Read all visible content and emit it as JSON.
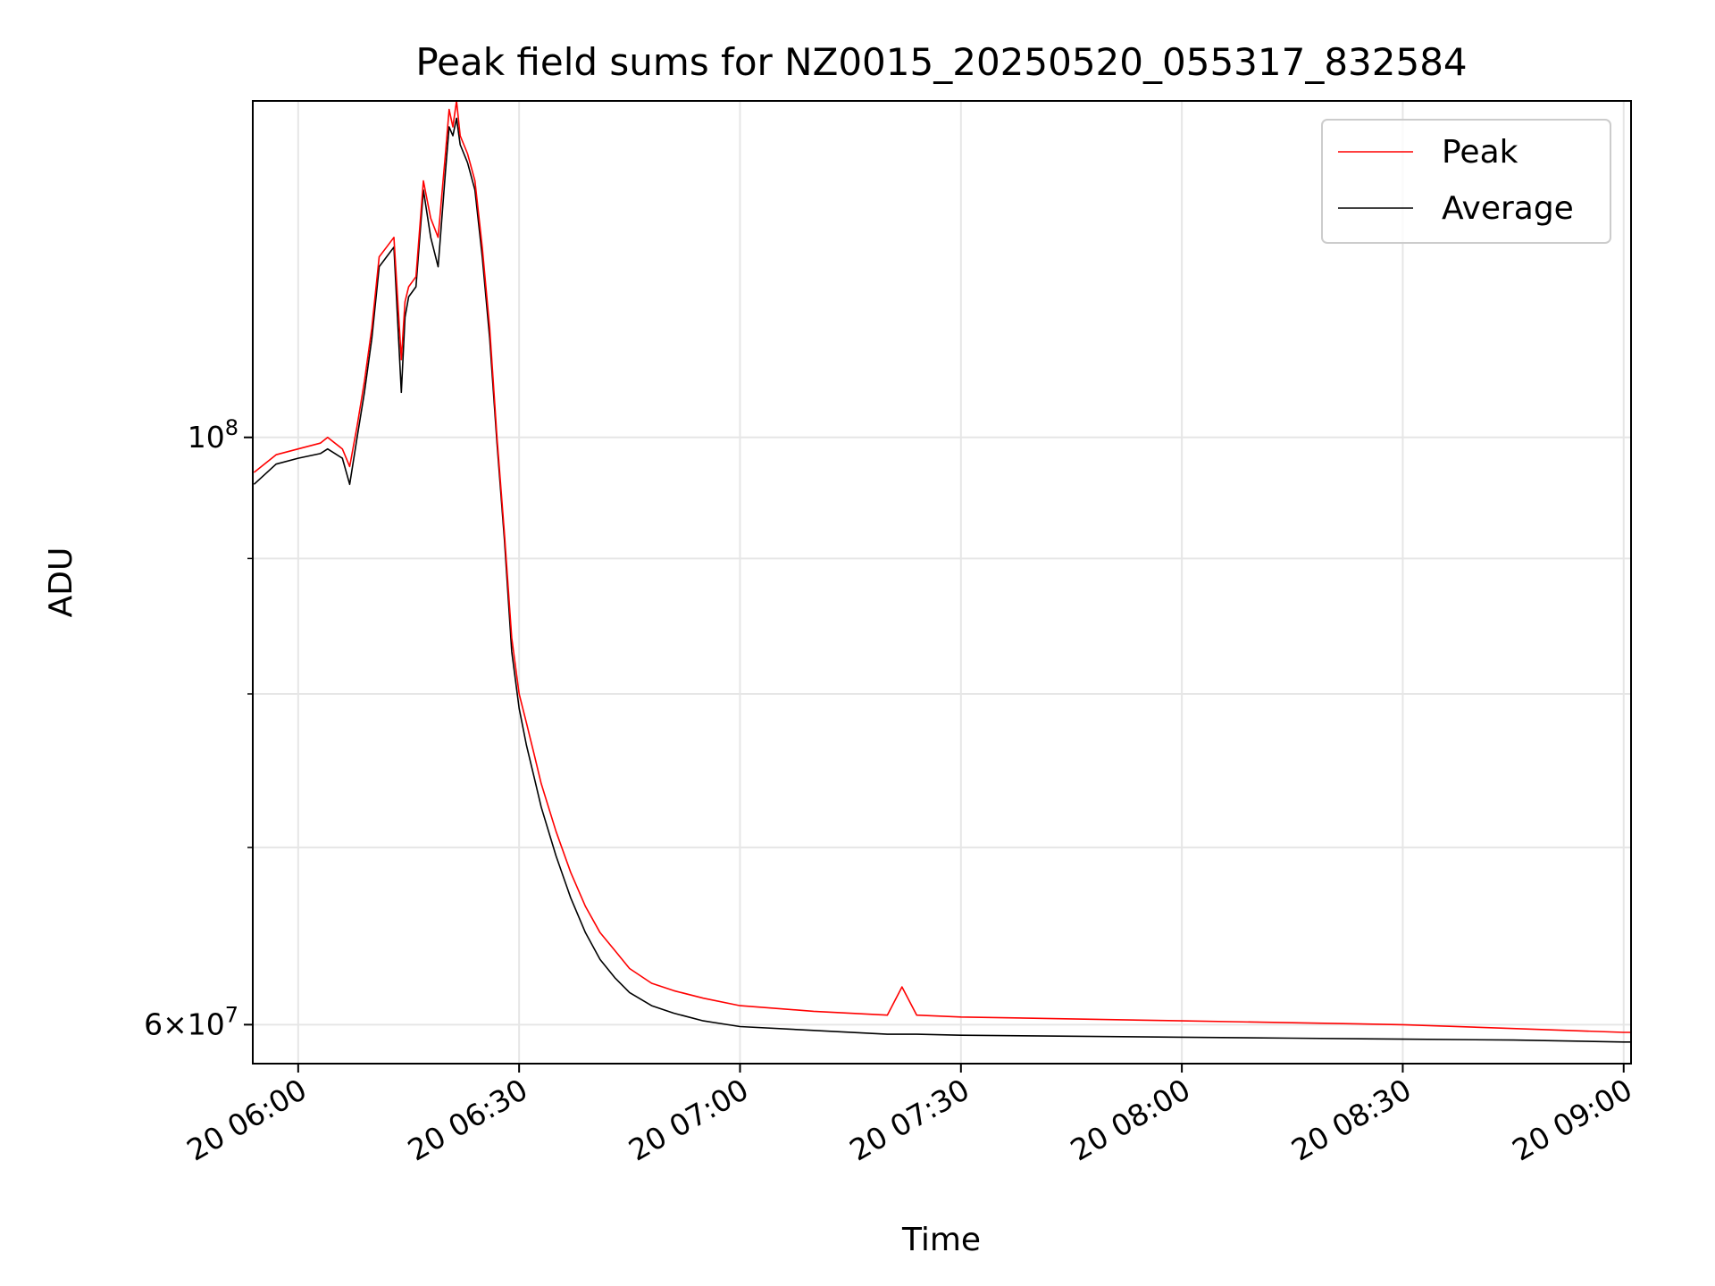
{
  "chart_data": {
    "type": "line",
    "title": "Peak field sums for NZ0015_20250520_055317_832584",
    "xlabel": "Time",
    "ylabel": "ADU",
    "x_unit": "time of day (day 20)",
    "y_scale": "log",
    "grid": true,
    "legend_position": "upper right",
    "xlim": [
      "05:53:50",
      "09:01:00"
    ],
    "ylim": [
      58000000,
      134000000
    ],
    "x_ticks": [
      "06:00",
      "06:30",
      "07:00",
      "07:30",
      "08:00",
      "08:30",
      "09:00"
    ],
    "x_tick_labels": [
      "20 06:00",
      "20 06:30",
      "20 07:00",
      "20 07:30",
      "20 08:00",
      "20 08:30",
      "20 09:00"
    ],
    "y_major_ticks": [
      {
        "value": 100000000,
        "base": "10",
        "exp": "8"
      },
      {
        "value": 60000000,
        "mant": "6",
        "base": "10",
        "exp": "7"
      }
    ],
    "y_minor_ticks": [
      70000000,
      80000000,
      90000000
    ],
    "series": [
      {
        "name": "Peak",
        "color": "#ff0000",
        "x": [
          "05:54",
          "05:57",
          "06:00",
          "06:03",
          "06:04",
          "06:06",
          "06:07",
          "06:08",
          "06:09",
          "06:10",
          "06:11",
          "06:12",
          "06:13",
          "06:14",
          "06:14:30",
          "06:15",
          "06:16",
          "06:17",
          "06:18",
          "06:19",
          "06:20",
          "06:20:30",
          "06:21",
          "06:21:30",
          "06:22",
          "06:23",
          "06:24",
          "06:25",
          "06:26",
          "06:27",
          "06:28",
          "06:29",
          "06:30",
          "06:31",
          "06:32",
          "06:33",
          "06:35",
          "06:37",
          "06:39",
          "06:41",
          "06:43",
          "06:45",
          "06:48",
          "06:51",
          "06:55",
          "07:00",
          "07:10",
          "07:20",
          "07:22",
          "07:24",
          "07:30",
          "07:45",
          "08:00",
          "08:15",
          "08:30",
          "08:45",
          "09:00",
          "09:01"
        ],
        "y": [
          97000000,
          98500000,
          99000000,
          99500000,
          100000000,
          99000000,
          97500000,
          101000000,
          105000000,
          110000000,
          117000000,
          118000000,
          119000000,
          107000000,
          112500000,
          114000000,
          115000000,
          125000000,
          121000000,
          119000000,
          128000000,
          133000000,
          131000000,
          134000000,
          130000000,
          128000000,
          125000000,
          118000000,
          110000000,
          100000000,
          92000000,
          84000000,
          80000000,
          78000000,
          76000000,
          74000000,
          71000000,
          68500000,
          66500000,
          65000000,
          64000000,
          63000000,
          62200000,
          61800000,
          61400000,
          61000000,
          60700000,
          60500000,
          62000000,
          60500000,
          60400000,
          60300000,
          60200000,
          60100000,
          60000000,
          59800000,
          59600000,
          59600000
        ]
      },
      {
        "name": "Average",
        "color": "#000000",
        "x": [
          "05:54",
          "05:57",
          "06:00",
          "06:03",
          "06:04",
          "06:06",
          "06:07",
          "06:08",
          "06:09",
          "06:10",
          "06:11",
          "06:12",
          "06:13",
          "06:14",
          "06:14:30",
          "06:15",
          "06:16",
          "06:17",
          "06:18",
          "06:19",
          "06:20",
          "06:20:30",
          "06:21",
          "06:21:30",
          "06:22",
          "06:23",
          "06:24",
          "06:25",
          "06:26",
          "06:27",
          "06:28",
          "06:29",
          "06:30",
          "06:31",
          "06:32",
          "06:33",
          "06:35",
          "06:37",
          "06:39",
          "06:41",
          "06:43",
          "06:45",
          "06:48",
          "06:51",
          "06:55",
          "07:00",
          "07:10",
          "07:20",
          "07:22",
          "07:24",
          "07:30",
          "07:45",
          "08:00",
          "08:15",
          "08:30",
          "08:45",
          "09:00",
          "09:01"
        ],
        "y": [
          96000000,
          97700000,
          98200000,
          98600000,
          99000000,
          98200000,
          96000000,
          100000000,
          104000000,
          109000000,
          116000000,
          117000000,
          118000000,
          104000000,
          111000000,
          113000000,
          114000000,
          124000000,
          119000000,
          116000000,
          126000000,
          131000000,
          130000000,
          132000000,
          129000000,
          127000000,
          124000000,
          117000000,
          109000000,
          99500000,
          91500000,
          83000000,
          79000000,
          76500000,
          74500000,
          72500000,
          69500000,
          67000000,
          65000000,
          63500000,
          62500000,
          61700000,
          61000000,
          60600000,
          60200000,
          59900000,
          59700000,
          59500000,
          59500000,
          59500000,
          59450000,
          59400000,
          59350000,
          59300000,
          59250000,
          59200000,
          59100000,
          59100000
        ]
      }
    ]
  }
}
